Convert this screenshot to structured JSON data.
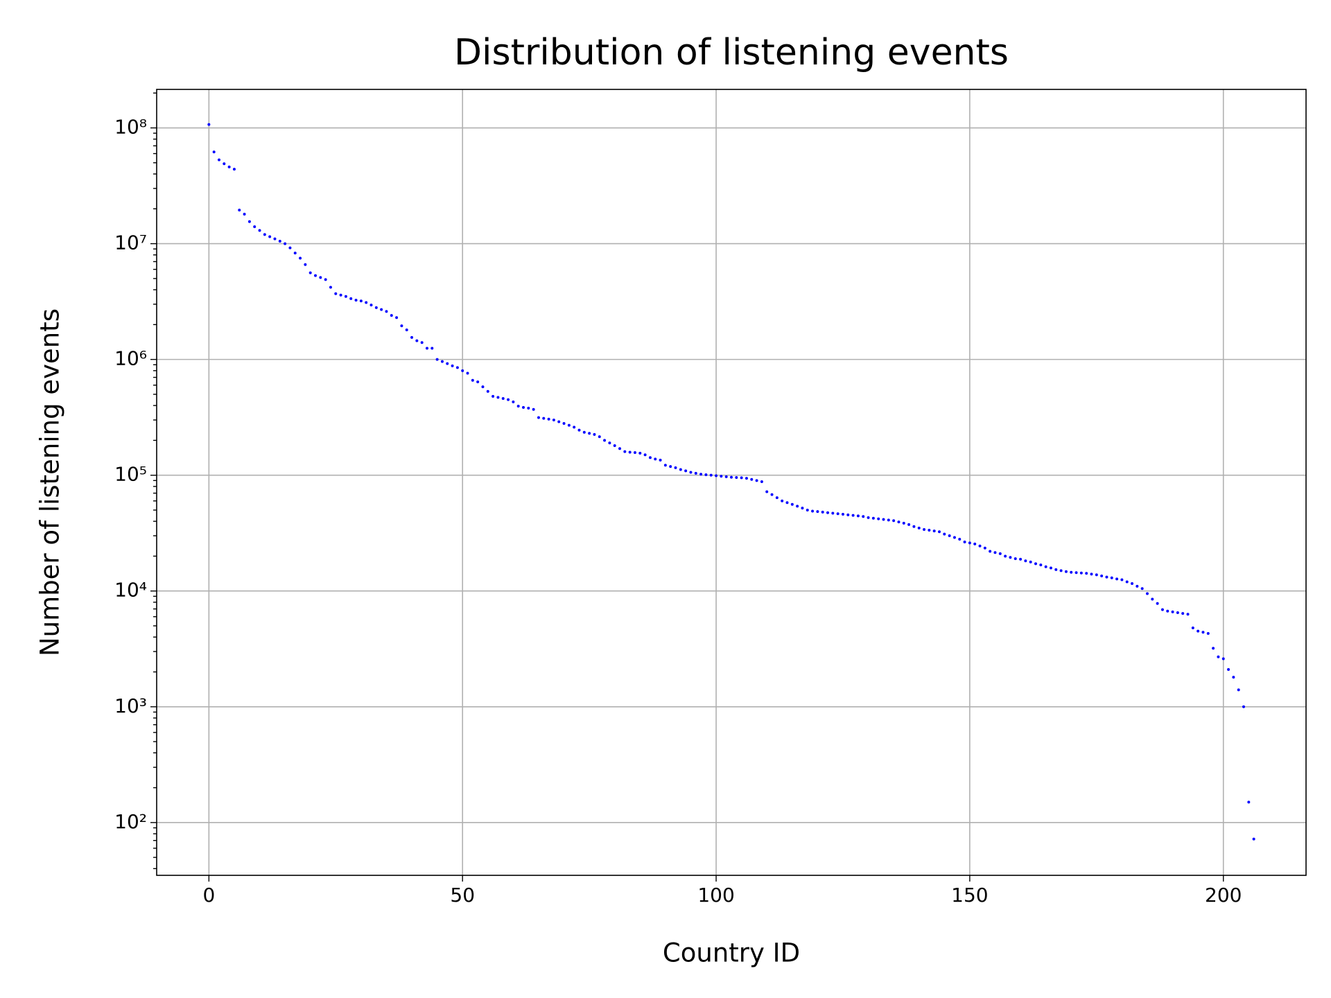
{
  "chart_data": {
    "type": "scatter",
    "title": "Distribution of listening events",
    "x_label": "Country ID",
    "y_label": "Number of listening events",
    "xlim": [
      -10.3,
      216.3
    ],
    "xticks": [
      0,
      50,
      100,
      150,
      200
    ],
    "ylim": [
      35,
      215000000.0
    ],
    "log_y": true,
    "grid": true,
    "color": "#0000ff",
    "yticks": [
      {
        "value": 100,
        "label": "10²"
      },
      {
        "value": 1000,
        "label": "10³"
      },
      {
        "value": 10000,
        "label": "10⁴"
      },
      {
        "value": 100000,
        "label": "10⁵"
      },
      {
        "value": 1000000,
        "label": "10⁶"
      },
      {
        "value": 10000000,
        "label": "10⁷"
      },
      {
        "value": 100000000,
        "label": "10⁸"
      }
    ],
    "yminorticks": [
      40,
      50,
      60,
      70,
      80,
      90,
      200,
      300,
      400,
      500,
      600,
      700,
      800,
      900,
      2000,
      3000,
      4000,
      5000,
      6000,
      7000,
      8000,
      9000,
      20000.0,
      30000.0,
      40000.0,
      50000.0,
      60000.0,
      70000.0,
      80000.0,
      90000.0,
      200000.0,
      300000.0,
      400000.0,
      500000.0,
      600000.0,
      700000.0,
      800000.0,
      900000.0,
      2000000.0,
      3000000.0,
      4000000.0,
      5000000.0,
      6000000.0,
      7000000.0,
      8000000.0,
      9000000.0,
      20000000.0,
      30000000.0,
      40000000.0,
      50000000.0,
      60000000.0,
      70000000.0,
      80000000.0,
      90000000.0,
      200000000.0
    ],
    "x": [
      0,
      1,
      2,
      3,
      4,
      5,
      6,
      7,
      8,
      9,
      10,
      11,
      12,
      13,
      14,
      15,
      16,
      17,
      18,
      19,
      20,
      21,
      22,
      23,
      24,
      25,
      26,
      27,
      28,
      29,
      30,
      31,
      32,
      33,
      34,
      35,
      36,
      37,
      38,
      39,
      40,
      41,
      42,
      43,
      44,
      45,
      46,
      47,
      48,
      49,
      50,
      51,
      52,
      53,
      54,
      55,
      56,
      57,
      58,
      59,
      60,
      61,
      62,
      63,
      64,
      65,
      66,
      67,
      68,
      69,
      70,
      71,
      72,
      73,
      74,
      75,
      76,
      77,
      78,
      79,
      80,
      81,
      82,
      83,
      84,
      85,
      86,
      87,
      88,
      89,
      90,
      91,
      92,
      93,
      94,
      95,
      96,
      97,
      98,
      99,
      100,
      101,
      102,
      103,
      104,
      105,
      106,
      107,
      108,
      109,
      110,
      111,
      112,
      113,
      114,
      115,
      116,
      117,
      118,
      119,
      120,
      121,
      122,
      123,
      124,
      125,
      126,
      127,
      128,
      129,
      130,
      131,
      132,
      133,
      134,
      135,
      136,
      137,
      138,
      139,
      140,
      141,
      142,
      143,
      144,
      145,
      146,
      147,
      148,
      149,
      150,
      151,
      152,
      153,
      154,
      155,
      156,
      157,
      158,
      159,
      160,
      161,
      162,
      163,
      164,
      165,
      166,
      167,
      168,
      169,
      170,
      171,
      172,
      173,
      174,
      175,
      176,
      177,
      178,
      179,
      180,
      181,
      182,
      183,
      184,
      185,
      186,
      187,
      188,
      189,
      190,
      191,
      192,
      193,
      194,
      195,
      196,
      197,
      198,
      199,
      200,
      201,
      202,
      203,
      204,
      205,
      206
    ],
    "values": [
      107000000.0,
      62000000.0,
      53000000.0,
      49000000.0,
      46000000.0,
      44000000.0,
      19500000.0,
      18000000.0,
      15500000.0,
      14000000.0,
      13000000.0,
      12000000.0,
      11500000.0,
      11000000.0,
      10500000.0,
      10000000.0,
      9200000.0,
      8300000.0,
      7500000.0,
      6600000.0,
      5600000.0,
      5300000.0,
      5100000.0,
      4900000.0,
      4200000.0,
      3700000.0,
      3600000.0,
      3500000.0,
      3350000.0,
      3250000.0,
      3200000.0,
      3100000.0,
      2950000.0,
      2800000.0,
      2700000.0,
      2600000.0,
      2400000.0,
      2300000.0,
      1950000.0,
      1800000.0,
      1550000.0,
      1450000.0,
      1400000.0,
      1250000.0,
      1250000.0,
      1000000.0,
      960000.0,
      920000.0,
      880000.0,
      850000.0,
      800000.0,
      760000.0,
      660000.0,
      640000.0,
      580000.0,
      530000.0,
      480000.0,
      470000.0,
      460000.0,
      450000.0,
      430000.0,
      395000.0,
      385000.0,
      380000.0,
      370000.0,
      315000.0,
      310000.0,
      305000.0,
      300000.0,
      290000.0,
      280000.0,
      270000.0,
      260000.0,
      245000.0,
      235000.0,
      230000.0,
      225000.0,
      215000.0,
      200000.0,
      190000.0,
      180000.0,
      170000.0,
      160000.0,
      158000.0,
      157000.0,
      155000.0,
      150000.0,
      142000.0,
      138000.0,
      135000.0,
      122000.0,
      119000.0,
      116000.0,
      112000.0,
      109000.0,
      106000.0,
      104000.0,
      102000.0,
      101000.0,
      100000.0,
      99000.0,
      98000.0,
      97000.0,
      96000.0,
      95500.0,
      95000.0,
      94000.0,
      92000.0,
      90000.0,
      88000.0,
      72000.0,
      68000.0,
      64000.0,
      60000.0,
      58000.0,
      56000.0,
      54000.0,
      52000.0,
      50000.0,
      49000.0,
      48500.0,
      48000.0,
      47500.0,
      47000.0,
      46500.0,
      46000.0,
      45500.0,
      45000.0,
      44500.0,
      44000.0,
      43000.0,
      42500.0,
      42000.0,
      41500.0,
      41000.0,
      40500.0,
      39500.0,
      38500.0,
      37500.0,
      36000.0,
      35000.0,
      34000.0,
      33500.0,
      33000.0,
      32500.0,
      31000.0,
      30000.0,
      29000.0,
      28000.0,
      26500.0,
      26000.0,
      25500.0,
      24500.0,
      23500.0,
      22000.0,
      21500.0,
      21000.0,
      20000.0,
      19500.0,
      19000.0,
      18800.0,
      18200.0,
      17800.0,
      17200.0,
      16800.0,
      16200.0,
      15800.0,
      15300.0,
      15000.0,
      14700.0,
      14500.0,
      14400.0,
      14300.0,
      14200.0,
      14000.0,
      13800.0,
      13500.0,
      13200.0,
      13000.0,
      12700.0,
      12500.0,
      12000.0,
      11600.0,
      11000.0,
      10500.0,
      9500.0,
      8500.0,
      7800.0,
      6900.0,
      6700.0,
      6600.0,
      6500.0,
      6400.0,
      6300.0,
      4800.0,
      4500.0,
      4400.0,
      4300.0,
      3200.0,
      2700.0,
      2600.0,
      2100.0,
      1800.0,
      1400.0,
      1000.0,
      150,
      72
    ]
  }
}
